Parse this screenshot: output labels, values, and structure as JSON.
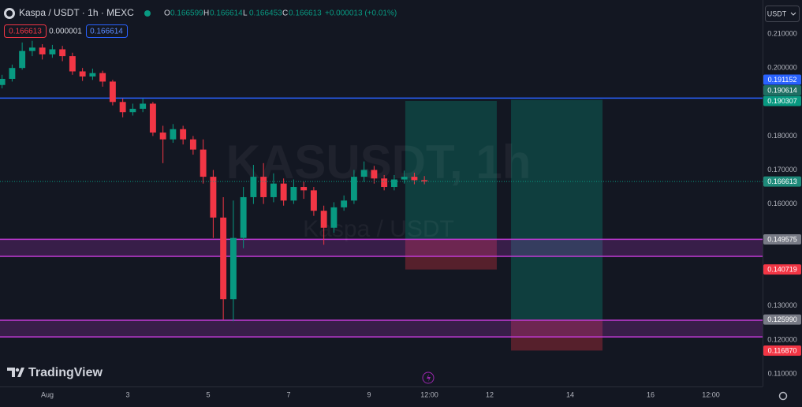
{
  "header": {
    "symbol": "Kaspa / USDT · 1h · MEXC",
    "ohlc": [
      {
        "key": "O",
        "value": "0.166599"
      },
      {
        "key": "H",
        "value": "0.166614"
      },
      {
        "key": "L",
        "value": "0.166453"
      },
      {
        "key": "C",
        "value": "0.166613"
      }
    ],
    "change": "+0.000013 (+0.01%)",
    "sell": "0.166613",
    "spread": "0.000001",
    "buy": "0.166614",
    "currency": "USDT"
  },
  "watermark": {
    "ticker": "KASUSDT, 1h",
    "name": "Kaspa / USDT"
  },
  "brand": "TradingView",
  "chart_data": {
    "type": "candlestick",
    "x": [
      -27,
      -21,
      -15,
      -9,
      -3,
      3,
      9,
      15,
      21,
      27,
      33,
      39,
      45,
      51,
      57,
      63,
      69,
      75,
      81,
      87,
      93,
      99,
      105,
      111,
      117,
      123,
      129,
      135,
      141,
      147,
      153,
      159,
      165,
      171,
      177,
      183,
      189,
      195,
      201,
      207,
      213,
      219,
      225
    ],
    "open": [
      0.195,
      0.1968,
      0.2,
      0.205,
      0.206,
      0.204,
      0.2055,
      0.2035,
      0.199,
      0.1975,
      0.1985,
      0.196,
      0.19,
      0.187,
      0.188,
      0.1895,
      0.181,
      0.179,
      0.182,
      0.179,
      0.176,
      0.168,
      0.156,
      0.132,
      0.15,
      0.162,
      0.168,
      0.162,
      0.166,
      0.161,
      0.165,
      0.164,
      0.158,
      0.153,
      0.159,
      0.161,
      0.168,
      0.17,
      0.1675,
      0.165,
      0.1672,
      0.168,
      0.167
    ],
    "high": [
      0.198,
      0.201,
      0.2075,
      0.208,
      0.207,
      0.2068,
      0.2065,
      0.2045,
      0.2,
      0.1998,
      0.1992,
      0.1965,
      0.191,
      0.1895,
      0.191,
      0.19,
      0.183,
      0.1835,
      0.183,
      0.18,
      0.179,
      0.17,
      0.162,
      0.161,
      0.165,
      0.1715,
      0.172,
      0.169,
      0.1675,
      0.1672,
      0.1665,
      0.165,
      0.1595,
      0.1605,
      0.1625,
      0.17,
      0.1725,
      0.1712,
      0.1685,
      0.1685,
      0.1698,
      0.1692,
      0.1682
    ],
    "low": [
      0.194,
      0.196,
      0.1995,
      0.2035,
      0.2025,
      0.203,
      0.202,
      0.198,
      0.1962,
      0.1965,
      0.1945,
      0.189,
      0.1855,
      0.186,
      0.187,
      0.18,
      0.172,
      0.178,
      0.1775,
      0.1745,
      0.166,
      0.15,
      0.126,
      0.1255,
      0.147,
      0.16,
      0.16,
      0.1605,
      0.1595,
      0.16,
      0.1615,
      0.1565,
      0.148,
      0.1515,
      0.158,
      0.16,
      0.1665,
      0.166,
      0.164,
      0.164,
      0.166,
      0.1658,
      0.1658
    ],
    "close": [
      0.1968,
      0.2,
      0.205,
      0.206,
      0.204,
      0.2055,
      0.2035,
      0.199,
      0.1975,
      0.1985,
      0.196,
      0.19,
      0.187,
      0.188,
      0.1895,
      0.181,
      0.179,
      0.182,
      0.179,
      0.176,
      0.168,
      0.156,
      0.132,
      0.15,
      0.162,
      0.168,
      0.162,
      0.166,
      0.161,
      0.165,
      0.164,
      0.158,
      0.153,
      0.159,
      0.161,
      0.168,
      0.17,
      0.1675,
      0.165,
      0.1672,
      0.168,
      0.167,
      0.166613
    ],
    "up_color": "#089981",
    "down_color": "#f23645",
    "xlim": [
      -28.24,
      426.8
    ],
    "xticks": [
      {
        "value": 0,
        "label": "Aug"
      },
      {
        "value": 48,
        "label": "3"
      },
      {
        "value": 96,
        "label": "5"
      },
      {
        "value": 144,
        "label": "7"
      },
      {
        "value": 192,
        "label": "9"
      },
      {
        "value": 228,
        "label": "12:00"
      },
      {
        "value": 264,
        "label": "12"
      },
      {
        "value": 312,
        "label": "14"
      },
      {
        "value": 360,
        "label": "16"
      },
      {
        "value": 396,
        "label": "12:00"
      }
    ],
    "ylim": [
      0.1063,
      0.22
    ],
    "yticks": [
      {
        "value": 0.11,
        "label": "0.110000"
      },
      {
        "value": 0.12,
        "label": "0.120000"
      },
      {
        "value": 0.13,
        "label": "0.130000"
      },
      {
        "value": 0.16,
        "label": "0.160000"
      },
      {
        "value": 0.17,
        "label": "0.170000"
      },
      {
        "value": 0.18,
        "label": "0.180000"
      },
      {
        "value": 0.2,
        "label": "0.200000"
      },
      {
        "value": 0.21,
        "label": "0.210000"
      }
    ],
    "grid": false,
    "last_price": 0.166613,
    "levels": [
      {
        "value": 0.191152,
        "color": "#2962ff"
      }
    ],
    "zones": [
      {
        "top": 0.1496,
        "bottom": 0.1446,
        "color": "#c13ad6"
      },
      {
        "top": 0.1258,
        "bottom": 0.1209,
        "color": "#c13ad6"
      }
    ],
    "positions": [
      {
        "x_start": 213.6,
        "x_end": 268.2,
        "entry": 0.149575,
        "target": 0.190307,
        "stop": 0.140719
      },
      {
        "x_start": 276.7,
        "x_end": 331.3,
        "entry": {
          "value": 0.12599,
          "label": "0.125990"
        },
        "target": 0.190614,
        "stop": {
          "value": 0.11687,
          "label": "0.116870"
        }
      }
    ]
  }
}
